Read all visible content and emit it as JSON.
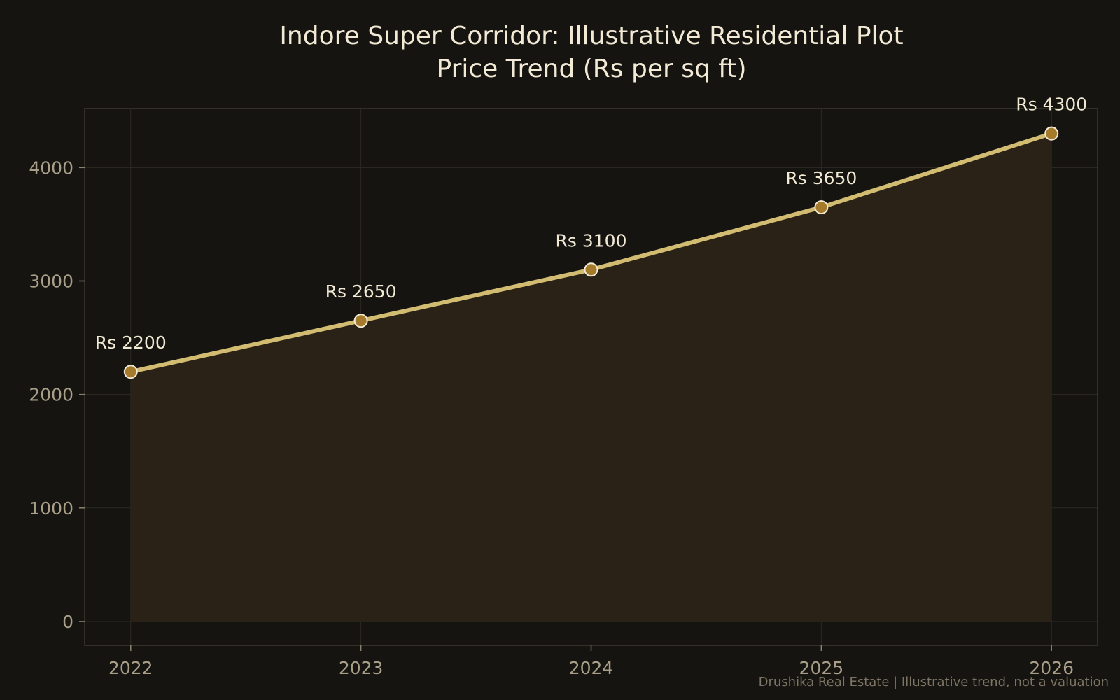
{
  "chart_data": {
    "type": "line",
    "title": [
      "Indore Super Corridor: Illustrative Residential Plot",
      "Price Trend (Rs per sq ft)"
    ],
    "xlabel": "",
    "ylabel": "",
    "x": [
      2022,
      2023,
      2024,
      2025,
      2026
    ],
    "x_tick_labels": [
      "2022",
      "2023",
      "2024",
      "2025",
      "2026"
    ],
    "series": [
      {
        "values": [
          2200,
          2650,
          3100,
          3650,
          4300
        ],
        "data_labels": [
          "Rs 2200",
          "Rs 2650",
          "Rs 3100",
          "Rs 3650",
          "Rs 4300"
        ]
      }
    ],
    "xlim": [
      2021.8,
      2026.2
    ],
    "ylim": [
      -210,
      4520
    ],
    "y_ticks": [
      0,
      1000,
      2000,
      3000,
      4000
    ],
    "y_tick_labels": [
      "0",
      "1000",
      "2000",
      "3000",
      "4000"
    ],
    "grid": true,
    "area_fill": true,
    "legend": "none",
    "footnote": "Drushika Real Estate | Illustrative trend, not a valuation",
    "colors": {
      "background": "#151410",
      "plot_background": "#151410",
      "line": "#d2bc72",
      "marker_fill": "#a57a2a",
      "marker_edge": "#f3ead6",
      "area": "#2a2216",
      "grid": "#2c2a22",
      "frame": "#3d3a2e",
      "title_text": "#f3ead6",
      "tick_text": "#a99f89",
      "footnote_text": "#7c7464"
    }
  }
}
